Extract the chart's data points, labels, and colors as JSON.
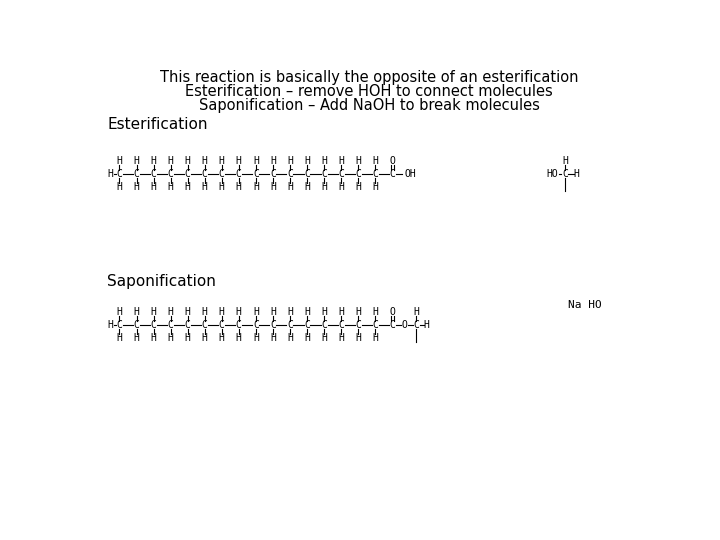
{
  "title_line1": "This reaction is basically the opposite of an esterification",
  "title_line2": "Esterification – remove HOH to connect molecules",
  "title_line3": "Saponification – Add NaOH to break molecules",
  "label_esterification": "Esterification",
  "label_saponification": "Saponification",
  "na_ho_label": "Na HO",
  "bg_color": "#ffffff",
  "text_color": "#000000",
  "font_size_title": 10.5,
  "font_size_label": 11,
  "font_size_struct": 7.0
}
